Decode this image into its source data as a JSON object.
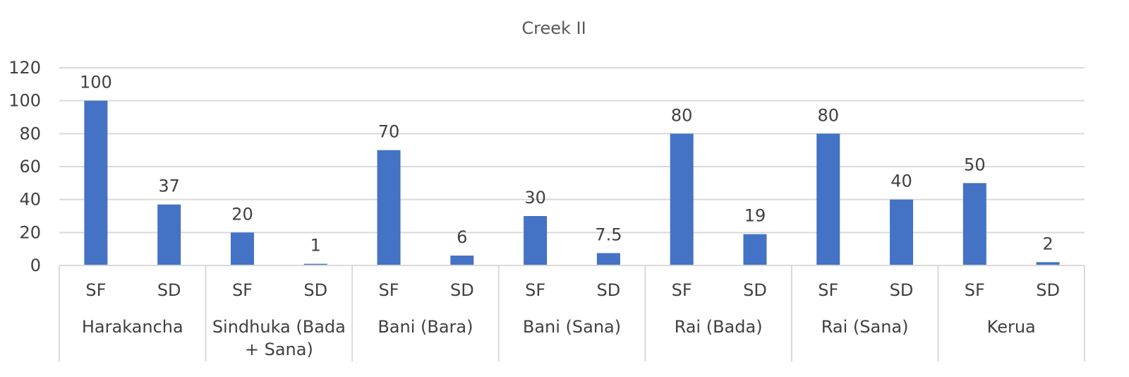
{
  "chart_data": {
    "type": "bar",
    "title": "Creek II",
    "xlabel": "",
    "ylabel": "",
    "ylim": [
      0,
      120
    ],
    "yticks": [
      0,
      20,
      40,
      60,
      80,
      100,
      120
    ],
    "grid": true,
    "legend": "none",
    "bar_color": "#4472c4",
    "groups": [
      {
        "label": "Harakancha",
        "label_lines": [
          "Harakancha"
        ],
        "categories": [
          "SF",
          "SD"
        ],
        "values": [
          100,
          37
        ],
        "labels": [
          "100",
          "37"
        ]
      },
      {
        "label": "Sindhuka (Bada + Sana)",
        "label_lines": [
          "Sindhuka (Bada",
          "+ Sana)"
        ],
        "categories": [
          "SF",
          "SD"
        ],
        "values": [
          20,
          1
        ],
        "labels": [
          "20",
          "1"
        ]
      },
      {
        "label": "Bani (Bara)",
        "label_lines": [
          "Bani (Bara)"
        ],
        "categories": [
          "SF",
          "SD"
        ],
        "values": [
          70,
          6
        ],
        "labels": [
          "70",
          "6"
        ]
      },
      {
        "label": "Bani (Sana)",
        "label_lines": [
          "Bani (Sana)"
        ],
        "categories": [
          "SF",
          "SD"
        ],
        "values": [
          30,
          7.5
        ],
        "labels": [
          "30",
          "7.5"
        ]
      },
      {
        "label": "Rai (Bada)",
        "label_lines": [
          "Rai (Bada)"
        ],
        "categories": [
          "SF",
          "SD"
        ],
        "values": [
          80,
          19
        ],
        "labels": [
          "80",
          "19"
        ]
      },
      {
        "label": "Rai (Sana)",
        "label_lines": [
          "Rai (Sana)"
        ],
        "categories": [
          "SF",
          "SD"
        ],
        "values": [
          80,
          40
        ],
        "labels": [
          "80",
          "40"
        ]
      },
      {
        "label": "Kerua",
        "label_lines": [
          "Kerua"
        ],
        "categories": [
          "SF",
          "SD"
        ],
        "values": [
          50,
          2
        ],
        "labels": [
          "50",
          "2"
        ]
      }
    ]
  }
}
